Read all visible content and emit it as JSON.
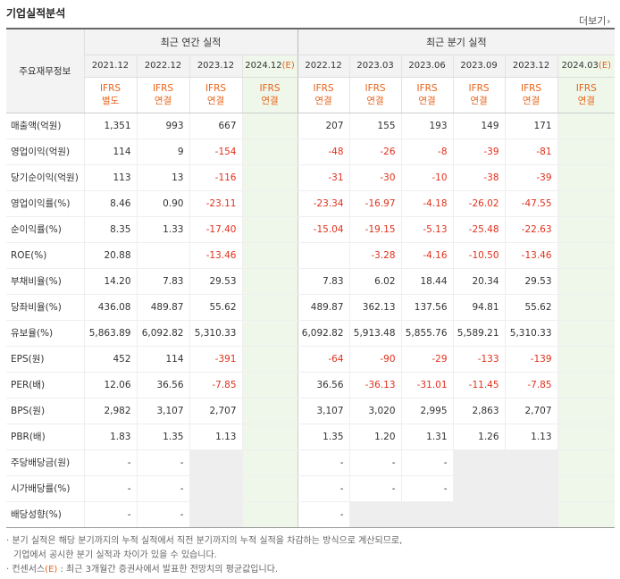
{
  "title": "기업실적분석",
  "more_label": "더보기",
  "header": {
    "row_label": "주요재무정보",
    "annual_group": "최근 연간 실적",
    "quarter_group": "최근 분기 실적",
    "annual_periods": [
      "2021.12",
      "2022.12",
      "2023.12",
      "2024.12"
    ],
    "quarter_periods": [
      "2022.12",
      "2023.03",
      "2023.06",
      "2023.09",
      "2023.12",
      "2024.03"
    ],
    "estimate_mark": "(E)",
    "annual_types": [
      [
        "IFRS",
        "별도"
      ],
      [
        "IFRS",
        "연결"
      ],
      [
        "IFRS",
        "연결"
      ],
      [
        "IFRS",
        "연결"
      ]
    ],
    "quarter_types": [
      [
        "IFRS",
        "연결"
      ],
      [
        "IFRS",
        "연결"
      ],
      [
        "IFRS",
        "연결"
      ],
      [
        "IFRS",
        "연결"
      ],
      [
        "IFRS",
        "연결"
      ],
      [
        "IFRS",
        "연결"
      ]
    ]
  },
  "rows": [
    {
      "label": "매출액(억원)",
      "annual": [
        "1,351",
        "993",
        "667",
        ""
      ],
      "quarter": [
        "207",
        "155",
        "193",
        "149",
        "171",
        ""
      ]
    },
    {
      "label": "영업이익(억원)",
      "annual": [
        "114",
        "9",
        "-154",
        ""
      ],
      "quarter": [
        "-48",
        "-26",
        "-8",
        "-39",
        "-81",
        ""
      ]
    },
    {
      "label": "당기순이익(억원)",
      "annual": [
        "113",
        "13",
        "-116",
        ""
      ],
      "quarter": [
        "-31",
        "-30",
        "-10",
        "-38",
        "-39",
        ""
      ]
    },
    {
      "label": "영업이익률(%)",
      "annual": [
        "8.46",
        "0.90",
        "-23.11",
        ""
      ],
      "quarter": [
        "-23.34",
        "-16.97",
        "-4.18",
        "-26.02",
        "-47.55",
        ""
      ]
    },
    {
      "label": "순이익률(%)",
      "annual": [
        "8.35",
        "1.33",
        "-17.40",
        ""
      ],
      "quarter": [
        "-15.04",
        "-19.15",
        "-5.13",
        "-25.48",
        "-22.63",
        ""
      ]
    },
    {
      "label": "ROE(%)",
      "annual": [
        "20.88",
        "",
        "-13.46",
        ""
      ],
      "quarter": [
        "",
        "-3.28",
        "-4.16",
        "-10.50",
        "-13.46",
        ""
      ]
    },
    {
      "label": "부채비율(%)",
      "annual": [
        "14.20",
        "7.83",
        "29.53",
        ""
      ],
      "quarter": [
        "7.83",
        "6.02",
        "18.44",
        "20.34",
        "29.53",
        ""
      ]
    },
    {
      "label": "당좌비율(%)",
      "annual": [
        "436.08",
        "489.87",
        "55.62",
        ""
      ],
      "quarter": [
        "489.87",
        "362.13",
        "137.56",
        "94.81",
        "55.62",
        ""
      ]
    },
    {
      "label": "유보율(%)",
      "annual": [
        "5,863.89",
        "6,092.82",
        "5,310.33",
        ""
      ],
      "quarter": [
        "6,092.82",
        "5,913.48",
        "5,855.76",
        "5,589.21",
        "5,310.33",
        ""
      ]
    },
    {
      "label": "EPS(원)",
      "annual": [
        "452",
        "114",
        "-391",
        ""
      ],
      "quarter": [
        "-64",
        "-90",
        "-29",
        "-133",
        "-139",
        ""
      ]
    },
    {
      "label": "PER(배)",
      "annual": [
        "12.06",
        "36.56",
        "-7.85",
        ""
      ],
      "quarter": [
        "36.56",
        "-36.13",
        "-31.01",
        "-11.45",
        "-7.85",
        ""
      ]
    },
    {
      "label": "BPS(원)",
      "annual": [
        "2,982",
        "3,107",
        "2,707",
        ""
      ],
      "quarter": [
        "3,107",
        "3,020",
        "2,995",
        "2,863",
        "2,707",
        ""
      ]
    },
    {
      "label": "PBR(배)",
      "annual": [
        "1.83",
        "1.35",
        "1.13",
        ""
      ],
      "quarter": [
        "1.35",
        "1.20",
        "1.31",
        "1.26",
        "1.13",
        ""
      ]
    },
    {
      "label": "주당배당금(원)",
      "annual": [
        "-",
        "-",
        "",
        ""
      ],
      "quarter": [
        "-",
        "-",
        "-",
        "",
        "",
        " "
      ]
    },
    {
      "label": "시가배당률(%)",
      "annual": [
        "-",
        "-",
        "",
        ""
      ],
      "quarter": [
        "-",
        "-",
        "-",
        "",
        "",
        ""
      ]
    },
    {
      "label": "배당성향(%)",
      "annual": [
        "-",
        "-",
        "",
        ""
      ],
      "quarter": [
        "-",
        "",
        "",
        "",
        "",
        ""
      ]
    }
  ],
  "notes": [
    "· 분기 실적은 해당 분기까지의 누적 실적에서 직전 분기까지의 누적 실적을 차감하는 방식으로 계산되므로,",
    "기업에서 공시한 분기 실적과 차이가 있을 수 있습니다.",
    "· 컨센서스",
    "(E)",
    ": 최근 3개월간 증권사에서 발표한 전망치의 평균값입니다."
  ]
}
